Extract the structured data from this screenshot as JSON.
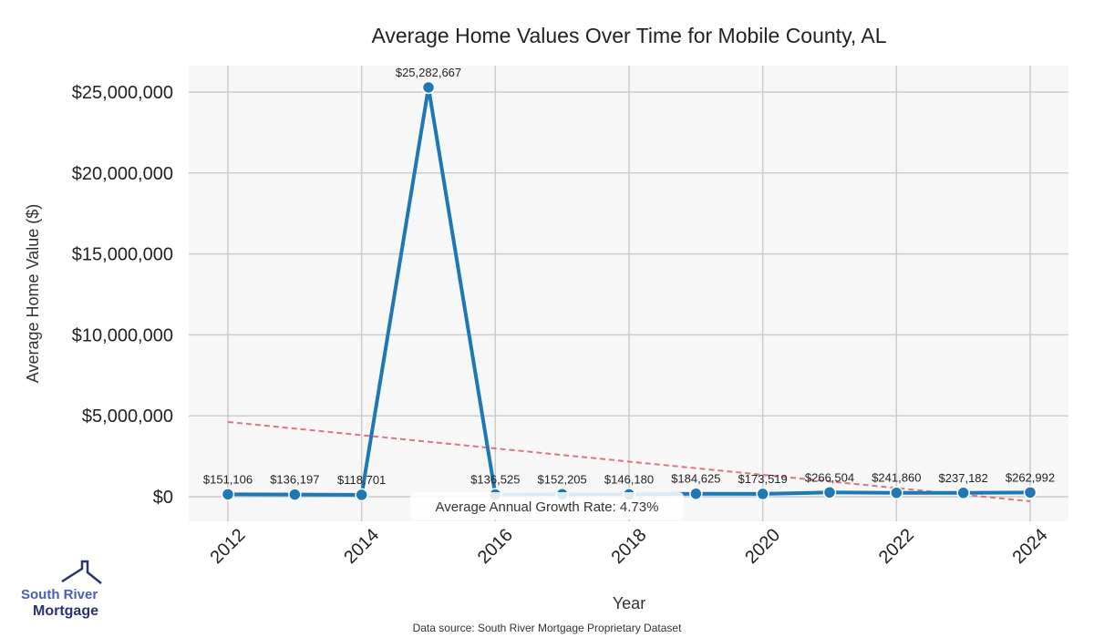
{
  "chart_data": {
    "type": "line",
    "title": "Average Home Values Over Time for Mobile County, AL",
    "xlabel": "Year",
    "ylabel": "Average Home Value ($)",
    "x": [
      2012,
      2013,
      2014,
      2015,
      2016,
      2017,
      2018,
      2019,
      2020,
      2021,
      2022,
      2023,
      2024
    ],
    "values": [
      151106,
      136197,
      118701,
      25282667,
      136525,
      152205,
      146180,
      184625,
      173519,
      266504,
      241860,
      237182,
      262992
    ],
    "data_labels": [
      "$151,106",
      "$136,197",
      "$118,701",
      "$25,282,667",
      "$136,525",
      "$152,205",
      "$146,180",
      "$184,625",
      "$173,519",
      "$266,504",
      "$241,860",
      "$237,182",
      "$262,992"
    ],
    "xticks": [
      "2012",
      "2014",
      "2016",
      "2018",
      "2020",
      "2022",
      "2024"
    ],
    "yticks": [
      0,
      5000000,
      10000000,
      15000000,
      20000000,
      25000000
    ],
    "ytick_labels": [
      "$0",
      "$5,000,000",
      "$10,000,000",
      "$15,000,000",
      "$20,000,000",
      "$25,000,000"
    ],
    "xlim": [
      2011.4,
      2024.6
    ],
    "ylim": [
      -1500000,
      26600000
    ],
    "trend": {
      "x": [
        2012,
        2024
      ],
      "y": [
        4620000,
        -280000
      ]
    },
    "annotation": "Average Annual Growth Rate: 4.73%",
    "grid": true,
    "colors": {
      "line": "#1f77b4",
      "trend": "#d9777d",
      "bg": "#f7f7f7",
      "grid": "#cccccc"
    }
  },
  "logo": {
    "line1": "South River",
    "line2": "Mortgage"
  },
  "source": "Data source: South River Mortgage Proprietary Dataset"
}
